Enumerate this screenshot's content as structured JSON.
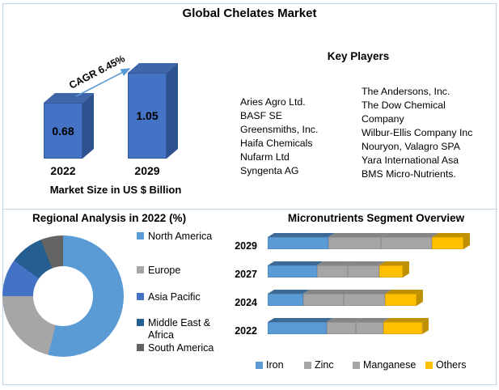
{
  "page_title": "Global Chelates Market",
  "frame_color": "#C2D4E8",
  "key_players": {
    "title": "Key Players",
    "column1": [
      "Aries Agro Ltd.",
      "BASF SE",
      "Greensmiths, Inc.",
      "Haifa Chemicals",
      "Nufarm Ltd",
      "Syngenta AG"
    ],
    "column2": [
      "The Andersons, Inc.",
      "The Dow Chemical",
      "Company",
      "Wilbur-Ellis Company Inc",
      "Nouryon, Valagro SPA",
      "Yara International Asa",
      "BMS Micro-Nutrients."
    ]
  },
  "chart_data": [
    {
      "id": "market-size-bar",
      "type": "bar",
      "categories": [
        "2022",
        "2029"
      ],
      "values": [
        0.68,
        1.05
      ],
      "value_labels": [
        "0.68",
        "1.05"
      ],
      "xlabel": "Market Size in US $ Billion",
      "annotation": "CAGR 6.45%",
      "ylim": [
        0,
        1.05
      ],
      "colors": {
        "front": "#4472C4",
        "top": "#3E66A9",
        "side": "#2E5190",
        "arrow": "#5B9BD5"
      }
    },
    {
      "id": "regional-analysis-pie",
      "type": "pie",
      "title": "Regional Analysis in 2022 (%)",
      "labels": [
        "North America",
        "Europe",
        "Asia Pacific",
        "Middle East & Africa",
        "South America"
      ],
      "values": [
        54,
        21,
        10,
        9,
        6
      ],
      "colors": [
        "#5B9BD5",
        "#A6A6A6",
        "#4472C4",
        "#255E91",
        "#636363"
      ],
      "donut": true,
      "legend_position": "right"
    },
    {
      "id": "micronutrients-stacked-bar",
      "type": "bar",
      "stacked": true,
      "orientation": "horizontal",
      "title": "Micronutrients Segment Overview",
      "categories": [
        "2029",
        "2027",
        "2024",
        "2022"
      ],
      "series": [
        {
          "name": "Iron",
          "color": "#5B9BD5",
          "shade": "#3D6A96",
          "values": [
            31,
            25,
            18,
            30
          ]
        },
        {
          "name": "Zinc",
          "color": "#A6A6A6",
          "shade": "#858585",
          "values": [
            27,
            16,
            21,
            15
          ]
        },
        {
          "name": "Manganese",
          "color": "#A6A6A6",
          "shade": "#858585",
          "values": [
            26,
            16,
            21,
            14
          ]
        },
        {
          "name": "Others",
          "color": "#FFC000",
          "shade": "#BF9000",
          "values": [
            16,
            12,
            16,
            20
          ]
        }
      ],
      "axis_max": 100,
      "legend_position": "bottom"
    }
  ]
}
